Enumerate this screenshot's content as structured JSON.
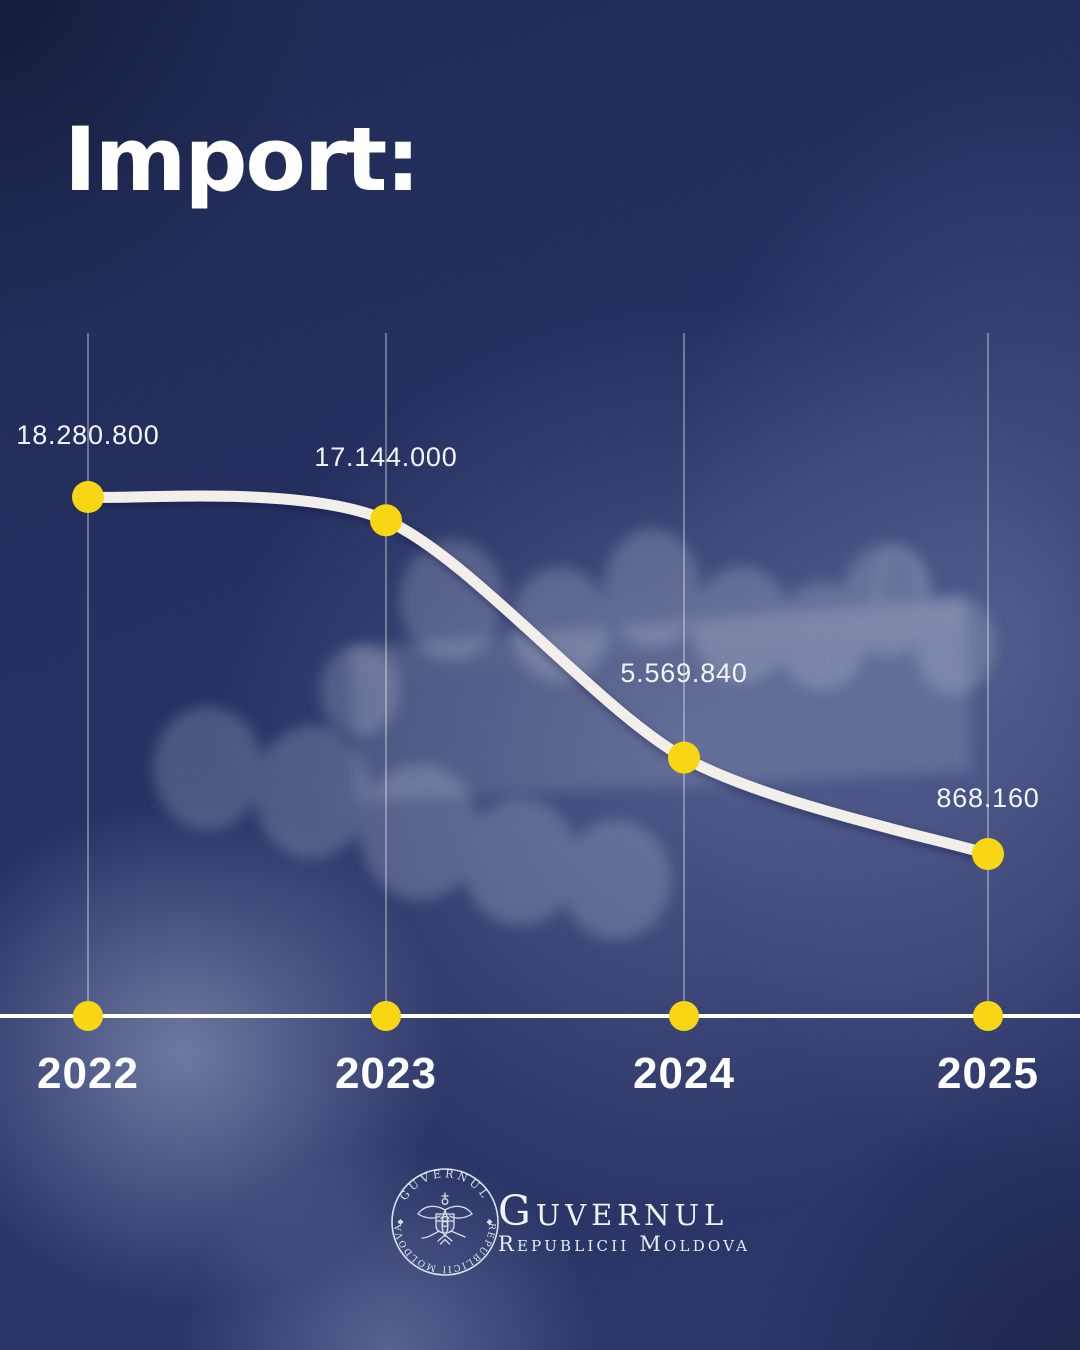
{
  "title": "Import:",
  "chart_data": {
    "type": "line",
    "title": "Import:",
    "categories": [
      "2022",
      "2023",
      "2024",
      "2025"
    ],
    "values": [
      18280800,
      17144000,
      5569840,
      868160
    ],
    "value_labels": [
      "18.280.800",
      "17.144.000",
      "5.569.840",
      "868.160"
    ],
    "series_name": "Import",
    "xlabel": "",
    "ylabel": "",
    "grid": "vertical-gridlines",
    "legend": "none",
    "line_color": "#f2efe9",
    "point_color": "#f8d513",
    "axis_color": "#ffffff",
    "label_color": "#ffffff"
  },
  "footer": {
    "org_name": "Guvernul",
    "org_subtitle": "Republicii Moldova",
    "seal_top_text": "GUVERNUL",
    "seal_bottom_text": "REPUBLICII MOLDOVA"
  },
  "colors": {
    "background_navy": "#232d5c",
    "accent_yellow": "#f8d513",
    "text": "#ffffff"
  }
}
